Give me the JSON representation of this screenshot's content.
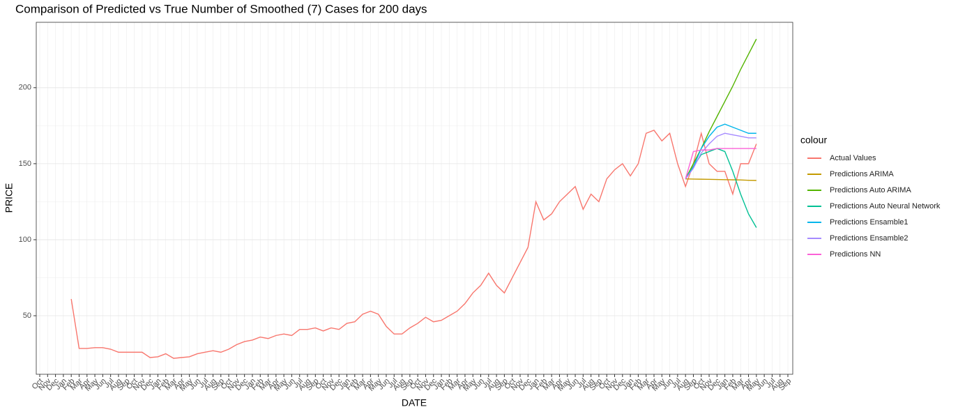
{
  "chart_data": {
    "type": "line",
    "title": "Comparison of Predicted vs True Number of Smoothed (7) Cases for 200 days",
    "x_label": "DATE",
    "y_label": "PRICE",
    "legend_title": "colour",
    "legend_position": "right",
    "grid": true,
    "categories": [
      "Oct",
      "Nov",
      "Dec",
      "Jan",
      "Feb",
      "Mar",
      "Apr",
      "May",
      "Jun",
      "Jul",
      "Aug",
      "Sep",
      "Oct",
      "Nov",
      "Dec",
      "Jan",
      "Feb",
      "Mar",
      "Apr",
      "May",
      "Jun",
      "Jul",
      "Aug",
      "Sep",
      "Oct",
      "Nov",
      "Dec",
      "Jan",
      "Feb",
      "Mar",
      "Apr",
      "May",
      "Jun",
      "Jul",
      "Aug",
      "Sep",
      "Oct",
      "Nov",
      "Dec",
      "Jan",
      "Feb",
      "Mar",
      "Apr",
      "May",
      "Jun",
      "Jul",
      "Aug",
      "Sep",
      "Oct",
      "Nov",
      "Dec",
      "Jan",
      "Feb",
      "Mar",
      "Apr",
      "May",
      "Jun",
      "Jul",
      "Aug",
      "Sep",
      "Oct",
      "Nov",
      "Dec",
      "Jan",
      "Feb",
      "Mar",
      "Apr",
      "May",
      "Jun",
      "Jul",
      "Aug",
      "Sep",
      "Oct",
      "Nov",
      "Dec",
      "Jan",
      "Feb",
      "Mar",
      "Apr",
      "May",
      "Jun",
      "Jul",
      "Aug",
      "Sep",
      "Oct",
      "Nov",
      "Dec",
      "Jan",
      "Feb",
      "Mar",
      "Apr",
      "May",
      "Jun",
      "Jul",
      "Aug",
      "Sep"
    ],
    "ylim": [
      11.5,
      243
    ],
    "yticks": [
      50,
      100,
      150,
      200
    ],
    "series": [
      {
        "name": "Actual Values",
        "color": "#F8766D",
        "values": [
          null,
          null,
          null,
          null,
          61,
          28.5,
          28.5,
          29,
          29,
          28,
          26,
          26,
          26,
          26,
          22.5,
          23,
          25,
          22,
          22.5,
          23,
          25,
          26,
          27,
          26,
          28,
          31,
          33,
          34,
          36,
          35,
          37,
          38,
          37,
          41,
          41,
          42,
          40,
          42,
          41,
          45,
          46,
          51,
          53,
          51,
          43,
          38,
          38,
          42,
          45,
          49,
          46,
          47,
          50,
          53,
          58,
          65,
          70,
          78,
          70,
          65,
          75,
          85,
          95,
          125,
          113,
          117,
          125,
          130,
          135,
          120,
          130,
          125,
          140,
          146,
          150,
          142,
          150,
          170,
          172,
          165,
          170,
          150,
          135,
          150,
          170,
          150,
          145,
          145,
          130,
          150,
          150,
          163,
          null,
          null,
          null,
          null
        ]
      },
      {
        "name": "Predictions ARIMA",
        "color": "#C49A00",
        "values": [
          null,
          null,
          null,
          null,
          null,
          null,
          null,
          null,
          null,
          null,
          null,
          null,
          null,
          null,
          null,
          null,
          null,
          null,
          null,
          null,
          null,
          null,
          null,
          null,
          null,
          null,
          null,
          null,
          null,
          null,
          null,
          null,
          null,
          null,
          null,
          null,
          null,
          null,
          null,
          null,
          null,
          null,
          null,
          null,
          null,
          null,
          null,
          null,
          null,
          null,
          null,
          null,
          null,
          null,
          null,
          null,
          null,
          null,
          null,
          null,
          null,
          null,
          null,
          null,
          null,
          null,
          null,
          null,
          null,
          null,
          null,
          null,
          null,
          null,
          null,
          null,
          null,
          null,
          null,
          null,
          null,
          null,
          140,
          139.9,
          139.8,
          139.7,
          139.6,
          139.5,
          139.4,
          139.3,
          139.1,
          139,
          null,
          null,
          null,
          null
        ]
      },
      {
        "name": "Predictions Auto ARIMA",
        "color": "#53B400",
        "values": [
          null,
          null,
          null,
          null,
          null,
          null,
          null,
          null,
          null,
          null,
          null,
          null,
          null,
          null,
          null,
          null,
          null,
          null,
          null,
          null,
          null,
          null,
          null,
          null,
          null,
          null,
          null,
          null,
          null,
          null,
          null,
          null,
          null,
          null,
          null,
          null,
          null,
          null,
          null,
          null,
          null,
          null,
          null,
          null,
          null,
          null,
          null,
          null,
          null,
          null,
          null,
          null,
          null,
          null,
          null,
          null,
          null,
          null,
          null,
          null,
          null,
          null,
          null,
          null,
          null,
          null,
          null,
          null,
          null,
          null,
          null,
          null,
          null,
          null,
          null,
          null,
          null,
          null,
          null,
          null,
          null,
          null,
          140,
          150,
          160,
          171,
          181,
          191,
          201,
          212,
          222,
          232,
          null,
          null,
          null,
          null
        ]
      },
      {
        "name": "Predictions Auto Neural Network",
        "color": "#00C094",
        "values": [
          null,
          null,
          null,
          null,
          null,
          null,
          null,
          null,
          null,
          null,
          null,
          null,
          null,
          null,
          null,
          null,
          null,
          null,
          null,
          null,
          null,
          null,
          null,
          null,
          null,
          null,
          null,
          null,
          null,
          null,
          null,
          null,
          null,
          null,
          null,
          null,
          null,
          null,
          null,
          null,
          null,
          null,
          null,
          null,
          null,
          null,
          null,
          null,
          null,
          null,
          null,
          null,
          null,
          null,
          null,
          null,
          null,
          null,
          null,
          null,
          null,
          null,
          null,
          null,
          null,
          null,
          null,
          null,
          null,
          null,
          null,
          null,
          null,
          null,
          null,
          null,
          null,
          null,
          null,
          null,
          null,
          null,
          140,
          148,
          156,
          158,
          160,
          158,
          145,
          130,
          117,
          108,
          null,
          null,
          null,
          null
        ]
      },
      {
        "name": "Predictions Ensamble1",
        "color": "#00B6EB",
        "values": [
          null,
          null,
          null,
          null,
          null,
          null,
          null,
          null,
          null,
          null,
          null,
          null,
          null,
          null,
          null,
          null,
          null,
          null,
          null,
          null,
          null,
          null,
          null,
          null,
          null,
          null,
          null,
          null,
          null,
          null,
          null,
          null,
          null,
          null,
          null,
          null,
          null,
          null,
          null,
          null,
          null,
          null,
          null,
          null,
          null,
          null,
          null,
          null,
          null,
          null,
          null,
          null,
          null,
          null,
          null,
          null,
          null,
          null,
          null,
          null,
          null,
          null,
          null,
          null,
          null,
          null,
          null,
          null,
          null,
          null,
          null,
          null,
          null,
          null,
          null,
          null,
          null,
          null,
          null,
          null,
          null,
          null,
          140,
          148,
          160,
          168,
          174,
          176,
          174,
          172,
          170,
          170,
          null,
          null,
          null,
          null
        ]
      },
      {
        "name": "Predictions Ensamble2",
        "color": "#A58AFF",
        "values": [
          null,
          null,
          null,
          null,
          null,
          null,
          null,
          null,
          null,
          null,
          null,
          null,
          null,
          null,
          null,
          null,
          null,
          null,
          null,
          null,
          null,
          null,
          null,
          null,
          null,
          null,
          null,
          null,
          null,
          null,
          null,
          null,
          null,
          null,
          null,
          null,
          null,
          null,
          null,
          null,
          null,
          null,
          null,
          null,
          null,
          null,
          null,
          null,
          null,
          null,
          null,
          null,
          null,
          null,
          null,
          null,
          null,
          null,
          null,
          null,
          null,
          null,
          null,
          null,
          null,
          null,
          null,
          null,
          null,
          null,
          null,
          null,
          null,
          null,
          null,
          null,
          null,
          null,
          null,
          null,
          null,
          null,
          140,
          147,
          157,
          163,
          168,
          170,
          169,
          168,
          167,
          167,
          null,
          null,
          null,
          null
        ]
      },
      {
        "name": "Predictions NN",
        "color": "#FB61D7",
        "values": [
          null,
          null,
          null,
          null,
          null,
          null,
          null,
          null,
          null,
          null,
          null,
          null,
          null,
          null,
          null,
          null,
          null,
          null,
          null,
          null,
          null,
          null,
          null,
          null,
          null,
          null,
          null,
          null,
          null,
          null,
          null,
          null,
          null,
          null,
          null,
          null,
          null,
          null,
          null,
          null,
          null,
          null,
          null,
          null,
          null,
          null,
          null,
          null,
          null,
          null,
          null,
          null,
          null,
          null,
          null,
          null,
          null,
          null,
          null,
          null,
          null,
          null,
          null,
          null,
          null,
          null,
          null,
          null,
          null,
          null,
          null,
          null,
          null,
          null,
          null,
          null,
          null,
          null,
          null,
          null,
          null,
          null,
          140,
          158,
          159,
          159,
          160,
          160,
          160,
          160,
          160,
          160,
          null,
          null,
          null,
          null
        ]
      }
    ]
  }
}
